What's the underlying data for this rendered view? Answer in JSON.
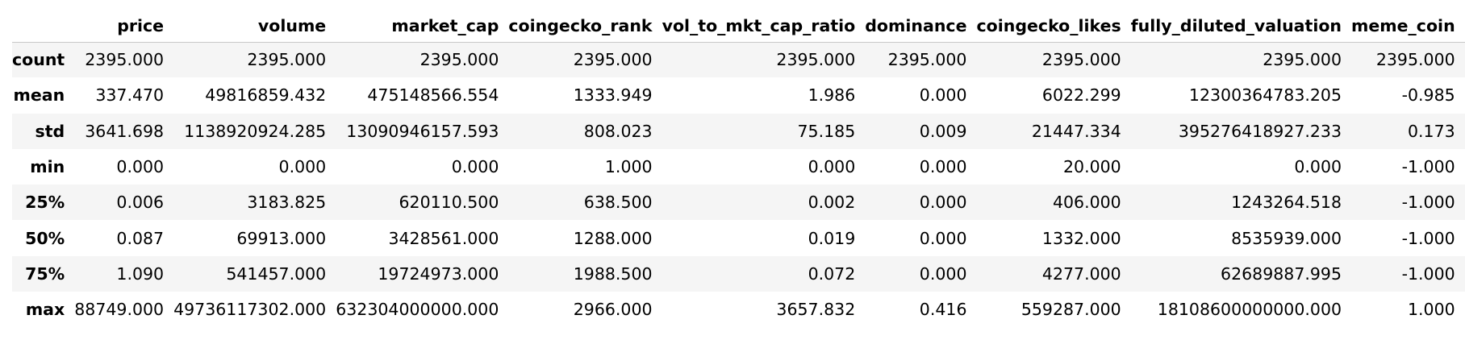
{
  "table": {
    "columns": [
      "price",
      "volume",
      "market_cap",
      "coingecko_rank",
      "vol_to_mkt_cap_ratio",
      "dominance",
      "coingecko_likes",
      "fully_diluted_valuation",
      "meme_coin"
    ],
    "rows": [
      {
        "label": "count",
        "values": [
          "2395.000",
          "2395.000",
          "2395.000",
          "2395.000",
          "2395.000",
          "2395.000",
          "2395.000",
          "2395.000",
          "2395.000"
        ]
      },
      {
        "label": "mean",
        "values": [
          "337.470",
          "49816859.432",
          "475148566.554",
          "1333.949",
          "1.986",
          "0.000",
          "6022.299",
          "12300364783.205",
          "-0.985"
        ]
      },
      {
        "label": "std",
        "values": [
          "3641.698",
          "1138920924.285",
          "13090946157.593",
          "808.023",
          "75.185",
          "0.009",
          "21447.334",
          "395276418927.233",
          "0.173"
        ]
      },
      {
        "label": "min",
        "values": [
          "0.000",
          "0.000",
          "0.000",
          "1.000",
          "0.000",
          "0.000",
          "20.000",
          "0.000",
          "-1.000"
        ]
      },
      {
        "label": "25%",
        "values": [
          "0.006",
          "3183.825",
          "620110.500",
          "638.500",
          "0.002",
          "0.000",
          "406.000",
          "1243264.518",
          "-1.000"
        ]
      },
      {
        "label": "50%",
        "values": [
          "0.087",
          "69913.000",
          "3428561.000",
          "1288.000",
          "0.019",
          "0.000",
          "1332.000",
          "8535939.000",
          "-1.000"
        ]
      },
      {
        "label": "75%",
        "values": [
          "1.090",
          "541457.000",
          "19724973.000",
          "1988.500",
          "0.072",
          "0.000",
          "4277.000",
          "62689887.995",
          "-1.000"
        ]
      },
      {
        "label": "max",
        "values": [
          "88749.000",
          "49736117302.000",
          "632304000000.000",
          "2966.000",
          "3657.832",
          "0.416",
          "559287.000",
          "18108600000000.000",
          "1.000"
        ]
      }
    ]
  }
}
